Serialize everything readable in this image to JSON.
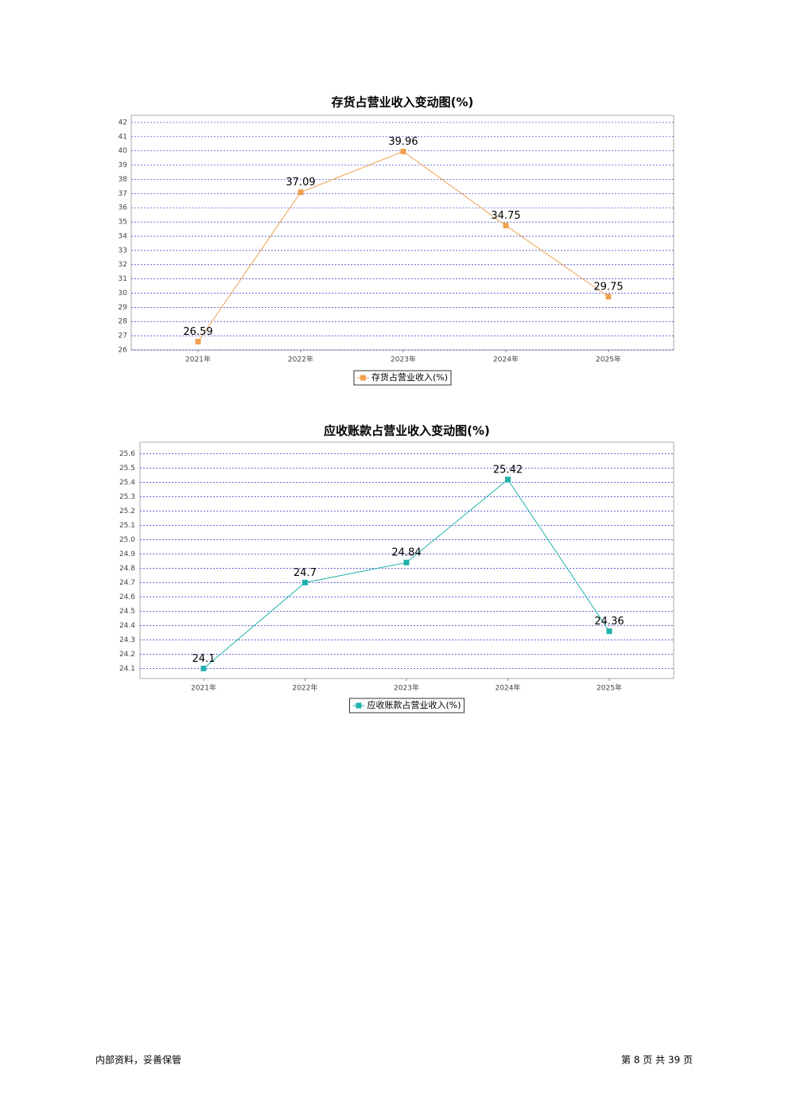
{
  "chart_data": [
    {
      "type": "line",
      "title": "存货占营业收入变动图(%)",
      "categories": [
        "2021年",
        "2022年",
        "2023年",
        "2024年",
        "2025年"
      ],
      "series": [
        {
          "name": "存货占营业收入(%)",
          "color": "#f0a050",
          "values": [
            26.59,
            37.09,
            39.96,
            34.75,
            29.75
          ]
        }
      ],
      "ylim": [
        26,
        42.5
      ],
      "yticks": [
        26,
        27,
        28,
        29,
        30,
        31,
        32,
        33,
        34,
        35,
        36,
        37,
        38,
        39,
        40,
        41,
        42
      ],
      "grid": true
    },
    {
      "type": "line",
      "title": "应收账款占营业收入变动图(%)",
      "categories": [
        "2021年",
        "2022年",
        "2023年",
        "2024年",
        "2025年"
      ],
      "series": [
        {
          "name": "应收账款占营业收入(%)",
          "color": "#20b2aa",
          "values": [
            24.1,
            24.7,
            24.84,
            25.42,
            24.36
          ]
        }
      ],
      "ylim": [
        24.03,
        25.68
      ],
      "yticks": [
        24.1,
        24.2,
        24.3,
        24.4,
        24.5,
        24.6,
        24.7,
        24.8,
        24.9,
        {
          "value": 25,
          "label": "25.0"
        },
        25.1,
        25.2,
        25.3,
        25.4,
        25.5,
        25.6
      ],
      "grid": true
    }
  ],
  "footer": {
    "left": "内部资料，妥善保管",
    "page_info": "第 8 页 共 39 页"
  }
}
